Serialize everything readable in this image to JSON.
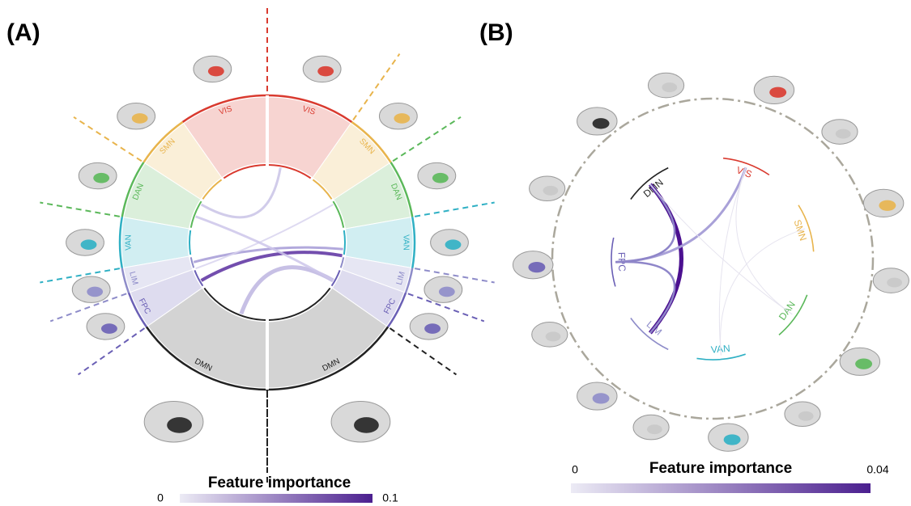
{
  "panels": [
    {
      "label": "(A)",
      "networks": [
        {
          "name": "VIS",
          "color": "#d93a2f"
        },
        {
          "name": "SMN",
          "color": "#e8b44c"
        },
        {
          "name": "DAN",
          "color": "#5bb85a"
        },
        {
          "name": "VAN",
          "color": "#2fb0c4"
        },
        {
          "name": "LIM",
          "color": "#8e8cc9"
        },
        {
          "name": "FPC",
          "color": "#6a5fb5"
        },
        {
          "name": "DMN",
          "color": "#222222"
        }
      ],
      "colorbar": {
        "title": "Feature importance",
        "min": 0,
        "max": 0.1
      }
    },
    {
      "label": "(B)",
      "networks": [
        {
          "name": "VIS",
          "color": "#d93a2f"
        },
        {
          "name": "SMN",
          "color": "#e8b44c"
        },
        {
          "name": "DAN",
          "color": "#5bb85a"
        },
        {
          "name": "VAN",
          "color": "#2fb0c4"
        },
        {
          "name": "LIM",
          "color": "#8e8cc9"
        },
        {
          "name": "FPC",
          "color": "#6a5fb5"
        },
        {
          "name": "DMN",
          "color": "#222222"
        }
      ],
      "colorbar": {
        "title": "Feature importance",
        "min": 0,
        "max": 0.04
      }
    }
  ]
}
